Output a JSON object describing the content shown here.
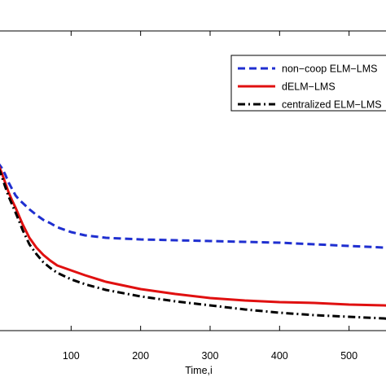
{
  "chart_data": {
    "type": "line",
    "xlabel": "Time,i",
    "ylabel": "",
    "title": "",
    "xlim": [
      -15,
      580
    ],
    "x_ticks": [
      100,
      200,
      300,
      400,
      500
    ],
    "grid": false,
    "legend_position": "top-right",
    "series": [
      {
        "name": "non−coop ELM−LMS",
        "color": "#1f2fd0",
        "style": "dashed",
        "x": [
          -15,
          -10,
          -5,
          0,
          5,
          10,
          15,
          20,
          25,
          30,
          40,
          50,
          60,
          70,
          80,
          100,
          120,
          150,
          200,
          250,
          300,
          350,
          400,
          450,
          500,
          550,
          580
        ],
        "y": [
          188,
          194,
          200,
          206,
          214,
          224,
          232,
          240,
          245,
          249,
          257,
          264,
          270,
          274,
          279,
          285,
          289,
          292,
          294,
          295,
          296,
          297,
          298,
          300,
          302,
          304,
          305
        ]
      },
      {
        "name": "dELM−LMS",
        "color": "#e01010",
        "style": "solid",
        "x": [
          -15,
          -10,
          -5,
          0,
          5,
          10,
          15,
          20,
          25,
          30,
          40,
          50,
          60,
          70,
          80,
          100,
          120,
          150,
          200,
          250,
          300,
          350,
          400,
          450,
          500,
          550,
          580
        ],
        "y": [
          190,
          196,
          202,
          212,
          224,
          236,
          246,
          255,
          265,
          275,
          292,
          304,
          313,
          320,
          326,
          332,
          338,
          346,
          355,
          361,
          366,
          369,
          371,
          372,
          374,
          375,
          376
        ]
      },
      {
        "name": "centralized ELM−LMS",
        "color": "#000000",
        "style": "dashdot",
        "x": [
          -15,
          -10,
          -5,
          0,
          5,
          10,
          15,
          20,
          25,
          30,
          40,
          50,
          60,
          70,
          80,
          100,
          120,
          150,
          200,
          250,
          300,
          350,
          400,
          450,
          500,
          550,
          580
        ],
        "y": [
          190,
          197,
          205,
          216,
          229,
          241,
          251,
          261,
          271,
          282,
          300,
          312,
          322,
          329,
          335,
          343,
          349,
          356,
          364,
          370,
          375,
          380,
          384,
          387,
          389,
          391,
          393
        ]
      }
    ]
  }
}
